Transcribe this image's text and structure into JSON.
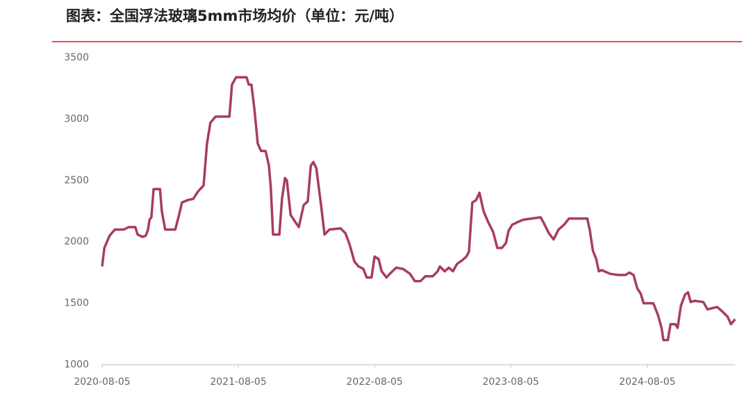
{
  "chart_data": {
    "type": "line",
    "title": "图表：全国浮法玻璃5mm市场均价（单位：元/吨）",
    "x": [
      "2020-08-05",
      "2020-08-11",
      "2020-08-25",
      "2020-09-08",
      "2020-10-02",
      "2020-10-15",
      "2020-11-02",
      "2020-11-08",
      "2020-11-21",
      "2020-11-30",
      "2020-12-06",
      "2020-12-10",
      "2020-12-15",
      "2020-12-21",
      "2021-01-07",
      "2021-01-12",
      "2021-01-21",
      "2021-02-17",
      "2021-02-28",
      "2021-03-07",
      "2021-03-22",
      "2021-04-06",
      "2021-04-19",
      "2021-05-04",
      "2021-05-13",
      "2021-05-22",
      "2021-06-05",
      "2021-07-12",
      "2021-07-19",
      "2021-07-30",
      "2021-08-27",
      "2021-09-02",
      "2021-09-09",
      "2021-09-17",
      "2021-09-26",
      "2021-10-05",
      "2021-10-17",
      "2021-10-26",
      "2021-10-31",
      "2021-11-06",
      "2021-11-23",
      "2021-11-30",
      "2021-12-08",
      "2021-12-13",
      "2021-12-23",
      "2022-01-05",
      "2022-01-14",
      "2022-01-27",
      "2022-02-07",
      "2022-02-15",
      "2022-02-22",
      "2022-03-02",
      "2022-03-15",
      "2022-03-24",
      "2022-04-06",
      "2022-05-06",
      "2022-05-19",
      "2022-05-30",
      "2022-06-12",
      "2022-06-23",
      "2022-07-06",
      "2022-07-15",
      "2022-07-28",
      "2022-08-05",
      "2022-08-16",
      "2022-08-24",
      "2022-09-06",
      "2022-09-15",
      "2022-10-02",
      "2022-10-20",
      "2022-11-08",
      "2022-11-21",
      "2022-12-06",
      "2022-12-19",
      "2023-01-08",
      "2023-01-21",
      "2023-01-27",
      "2023-02-09",
      "2023-02-20",
      "2023-03-03",
      "2023-03-14",
      "2023-03-28",
      "2023-04-08",
      "2023-04-15",
      "2023-04-24",
      "2023-05-04",
      "2023-05-13",
      "2023-05-24",
      "2023-06-04",
      "2023-06-19",
      "2023-06-30",
      "2023-07-12",
      "2023-07-23",
      "2023-07-30",
      "2023-08-09",
      "2023-08-23",
      "2023-09-07",
      "2023-09-30",
      "2023-10-24",
      "2023-11-02",
      "2023-11-15",
      "2023-11-28",
      "2023-12-11",
      "2023-12-26",
      "2024-01-08",
      "2024-01-29",
      "2024-02-26",
      "2024-03-04",
      "2024-03-12",
      "2024-03-21",
      "2024-03-28",
      "2024-04-05",
      "2024-04-27",
      "2024-05-19",
      "2024-06-07",
      "2024-06-18",
      "2024-06-29",
      "2024-07-09",
      "2024-07-18",
      "2024-07-26",
      "2024-08-21",
      "2024-09-03",
      "2024-09-12",
      "2024-09-17",
      "2024-09-29",
      "2024-10-06",
      "2024-10-19",
      "2024-10-25",
      "2024-11-03",
      "2024-11-14",
      "2024-11-22",
      "2024-11-29",
      "2024-12-10",
      "2025-01-02",
      "2025-01-13",
      "2025-01-26",
      "2025-02-08",
      "2025-02-23",
      "2025-03-08",
      "2025-03-17",
      "2025-03-28"
    ],
    "series": [
      {
        "name": "全国浮法玻璃5mm市场均价",
        "color": "#a63d5e",
        "values": [
          1800,
          1950,
          2050,
          2100,
          2100,
          2120,
          2120,
          2060,
          2040,
          2050,
          2100,
          2180,
          2200,
          2430,
          2430,
          2250,
          2100,
          2100,
          2230,
          2320,
          2340,
          2350,
          2410,
          2460,
          2800,
          2970,
          3020,
          3020,
          3280,
          3340,
          3340,
          3280,
          3280,
          3080,
          2800,
          2740,
          2740,
          2620,
          2440,
          2060,
          2060,
          2350,
          2520,
          2500,
          2220,
          2160,
          2120,
          2300,
          2330,
          2620,
          2650,
          2600,
          2290,
          2060,
          2100,
          2110,
          2070,
          1980,
          1840,
          1800,
          1780,
          1710,
          1710,
          1880,
          1860,
          1760,
          1710,
          1740,
          1790,
          1780,
          1740,
          1680,
          1680,
          1720,
          1720,
          1760,
          1800,
          1760,
          1790,
          1760,
          1820,
          1850,
          1880,
          1920,
          2320,
          2340,
          2400,
          2250,
          2170,
          2080,
          1950,
          1950,
          1990,
          2090,
          2140,
          2160,
          2180,
          2190,
          2200,
          2150,
          2070,
          2020,
          2100,
          2140,
          2190,
          2190,
          2190,
          2090,
          1930,
          1860,
          1760,
          1770,
          1740,
          1730,
          1730,
          1750,
          1730,
          1620,
          1580,
          1500,
          1500,
          1400,
          1300,
          1200,
          1200,
          1330,
          1330,
          1300,
          1480,
          1570,
          1590,
          1510,
          1520,
          1510,
          1450,
          1460,
          1470,
          1430,
          1390,
          1330,
          1370
        ]
      }
    ],
    "xlim": [
      "2020-08-05",
      "2025-03-28"
    ],
    "xticks": [
      "2020-08-05",
      "2021-08-05",
      "2022-08-05",
      "2023-08-05",
      "2024-08-05"
    ],
    "ylim": [
      1000,
      3500
    ],
    "yticks": [
      1000,
      1500,
      2000,
      2500,
      3000,
      3500
    ]
  }
}
